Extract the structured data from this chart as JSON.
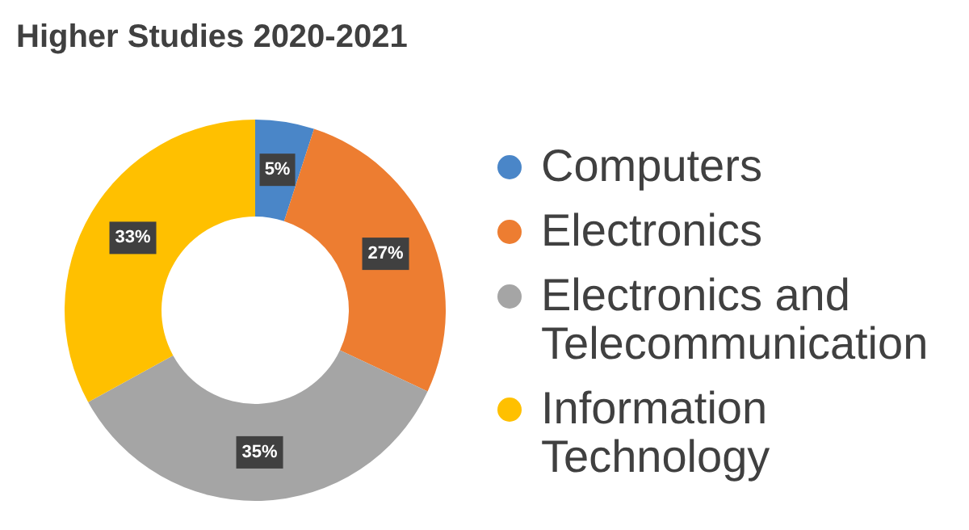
{
  "chart_data": {
    "type": "donut",
    "title": "Higher Studies 2020-2021",
    "categories": [
      "Computers",
      "Electronics",
      "Electronics and Telecommunication",
      "Information Technology"
    ],
    "values": [
      5,
      27,
      35,
      33
    ],
    "colors": [
      "#4a86c8",
      "#ed7d31",
      "#a5a5a5",
      "#ffc000"
    ],
    "value_labels": [
      "5%",
      "27%",
      "35%",
      "33%"
    ],
    "legend": "right"
  }
}
